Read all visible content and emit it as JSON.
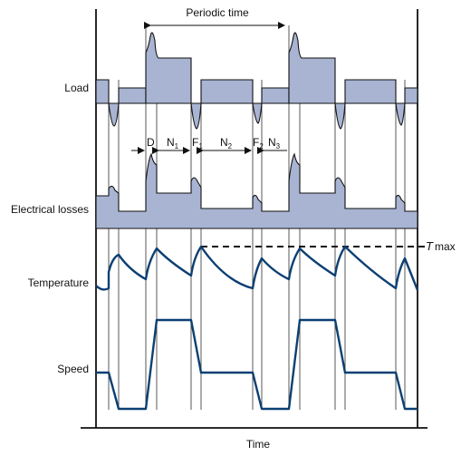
{
  "labels": {
    "periodic_time": "Periodic time",
    "load": "Load",
    "electrical_losses": "Electrical losses",
    "temperature": "Temperature",
    "speed": "Speed",
    "time": "Time",
    "t_max": "T",
    "t_max_sub": "max"
  },
  "phases": {
    "d": "D",
    "n1": "N",
    "n1_sub": "1",
    "f1": "F",
    "f1_sub": "1",
    "n2": "N",
    "n2_sub": "2",
    "f2": "F",
    "f2_sub": "2",
    "n3": "N",
    "n3_sub": "3"
  },
  "colors": {
    "fill": "#a8b4d2",
    "curve": "#0c3f72",
    "line": "#111111"
  }
}
